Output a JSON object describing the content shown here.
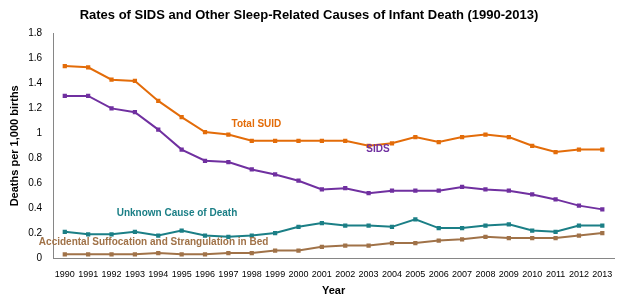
{
  "chart_data": {
    "type": "line",
    "title": "Rates of SIDS and Other Sleep-Related Causes of Infant Death (1990-2013)",
    "x_label": "Year",
    "y_label": "Deaths per 1,000 births",
    "categories": [
      "1990",
      "1991",
      "1992",
      "1993",
      "1994",
      "1995",
      "1996",
      "1997",
      "1998",
      "1999",
      "2000",
      "2001",
      "2002",
      "2003",
      "2004",
      "2005",
      "2006",
      "2007",
      "2008",
      "2009",
      "2010",
      "2011",
      "2012",
      "2013"
    ],
    "series": [
      {
        "name": "Total SUID",
        "color": "#e36c09",
        "marker": "square",
        "values": [
          1.54,
          1.53,
          1.43,
          1.42,
          1.26,
          1.13,
          1.01,
          0.99,
          0.94,
          0.94,
          0.94,
          0.94,
          0.94,
          0.9,
          0.92,
          0.97,
          0.93,
          0.97,
          0.99,
          0.97,
          0.9,
          0.85,
          0.87,
          0.87
        ]
      },
      {
        "name": "SIDS",
        "color": "#7030a0",
        "marker": "square",
        "values": [
          1.3,
          1.3,
          1.2,
          1.17,
          1.03,
          0.87,
          0.78,
          0.77,
          0.71,
          0.67,
          0.62,
          0.55,
          0.56,
          0.52,
          0.54,
          0.54,
          0.54,
          0.57,
          0.55,
          0.54,
          0.51,
          0.47,
          0.42,
          0.39
        ]
      },
      {
        "name": "Unknown Cause of Death",
        "color": "#1b7f86",
        "marker": "square",
        "values": [
          0.21,
          0.19,
          0.19,
          0.21,
          0.18,
          0.22,
          0.18,
          0.17,
          0.18,
          0.2,
          0.25,
          0.28,
          0.26,
          0.26,
          0.25,
          0.31,
          0.24,
          0.24,
          0.26,
          0.27,
          0.22,
          0.21,
          0.26,
          0.26
        ]
      },
      {
        "name": "Accidental Suffocation and Strangulation in Bed",
        "color": "#a07248",
        "marker": "square",
        "values": [
          0.03,
          0.03,
          0.03,
          0.03,
          0.04,
          0.03,
          0.03,
          0.04,
          0.04,
          0.06,
          0.06,
          0.09,
          0.1,
          0.1,
          0.12,
          0.12,
          0.14,
          0.15,
          0.17,
          0.16,
          0.16,
          0.16,
          0.18,
          0.2
        ]
      }
    ],
    "ylim": [
      0,
      1.8
    ],
    "yticks": [
      0,
      0.2,
      0.4,
      0.6,
      0.8,
      1,
      1.2,
      1.4,
      1.6,
      1.8
    ],
    "grid": false
  }
}
